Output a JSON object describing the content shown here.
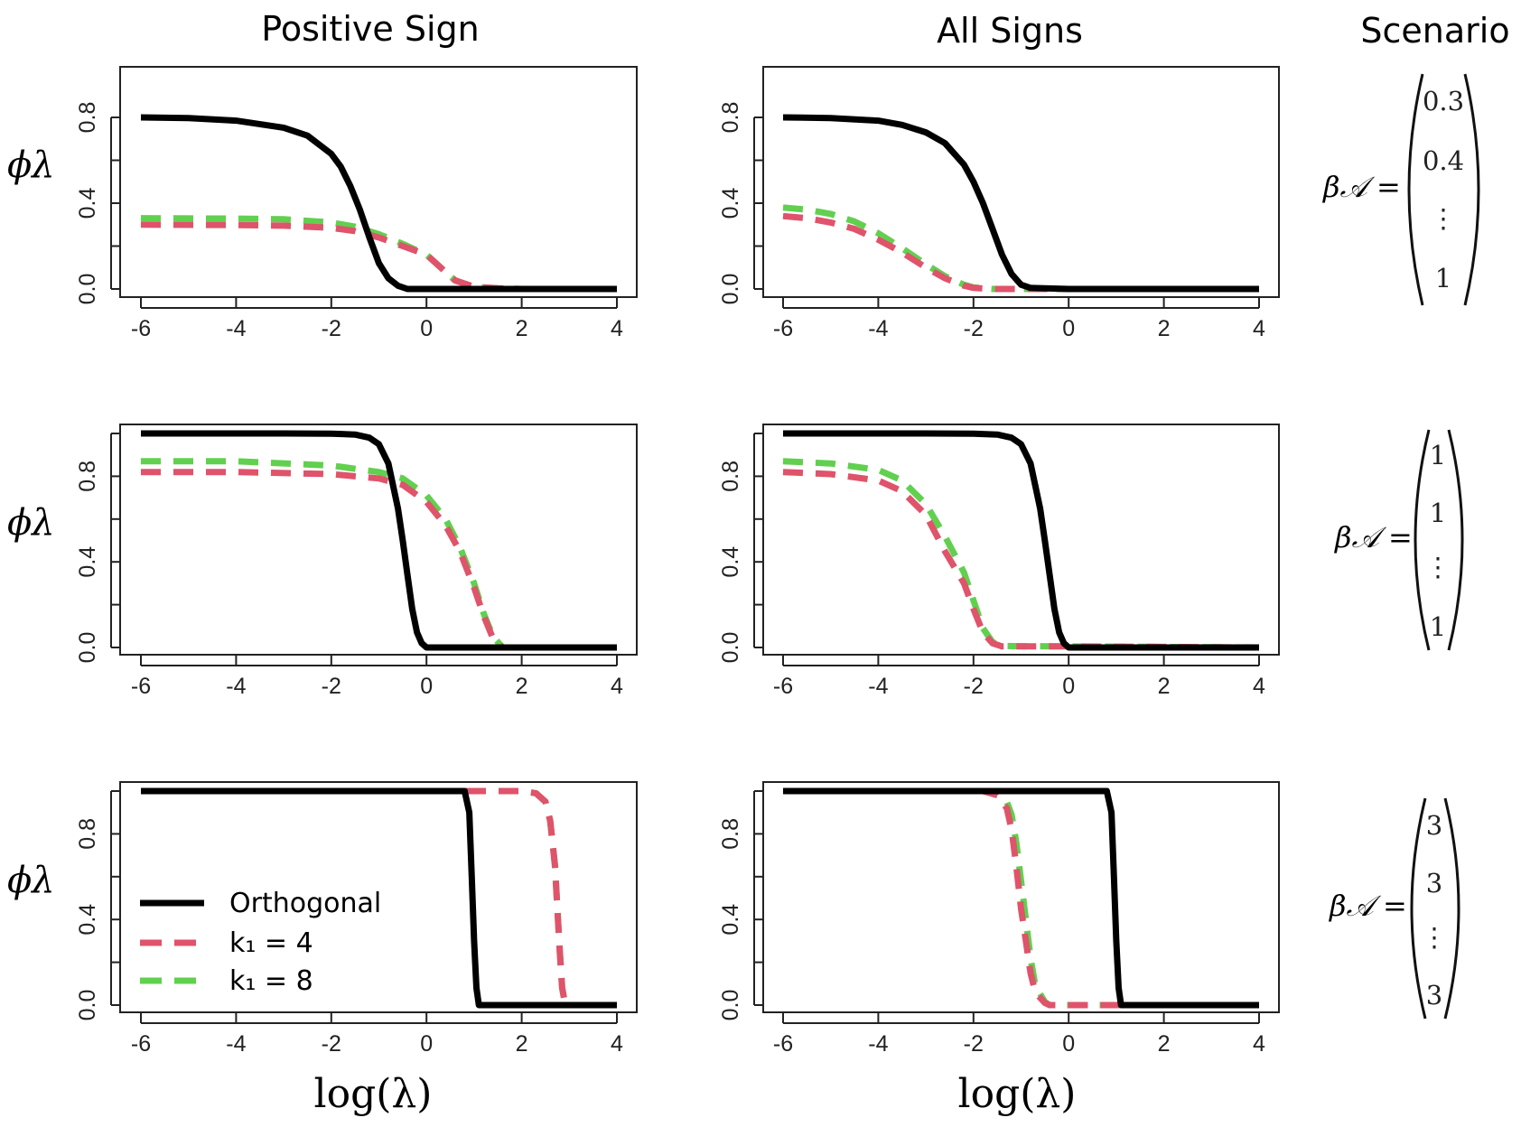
{
  "figure": {
    "column_titles": [
      "Positive Sign",
      "All Signs",
      "Scenario"
    ],
    "y_axis_label": "ϕλ",
    "x_axis_label": "log(λ)",
    "colors": {
      "orthogonal": "#000000",
      "k1_4": "#df536b",
      "k1_8": "#61d04f"
    }
  },
  "legend": {
    "items": [
      {
        "label": "Orthogonal",
        "color": "#000000",
        "style": "solid"
      },
      {
        "label": "k₁ = 4",
        "color": "#df536b",
        "style": "dashed"
      },
      {
        "label": "k₁ = 8",
        "color": "#61d04f",
        "style": "dashed"
      }
    ]
  },
  "scenarios": [
    {
      "label": "β𝒜 =",
      "entries": [
        "0.3",
        "0.4",
        "⋮",
        "1"
      ]
    },
    {
      "label": "β𝒜 =",
      "entries": [
        "1",
        "1",
        "⋮",
        "1"
      ]
    },
    {
      "label": "β𝒜 =",
      "entries": [
        "3",
        "3",
        "⋮",
        "3"
      ]
    }
  ],
  "chart_data": [
    {
      "type": "line",
      "row": 0,
      "col": 0,
      "xlim": [
        -6,
        4
      ],
      "ylim": [
        0,
        0.8
      ],
      "xticks": [
        -6,
        -4,
        -2,
        0,
        2,
        4
      ],
      "xtick_labels": [
        "-6",
        "-4",
        "-2",
        "0",
        "2",
        "4"
      ],
      "yticks": [
        0,
        0.4,
        0.8
      ],
      "ytick_labels": [
        "0.0",
        "0.4",
        "0.8"
      ],
      "series": [
        {
          "name": "Orthogonal",
          "x": [
            -6,
            -5,
            -4,
            -3,
            -2.5,
            -2,
            -1.8,
            -1.6,
            -1.4,
            -1.2,
            -1,
            -0.8,
            -0.6,
            -0.4,
            0,
            1,
            2,
            3,
            4
          ],
          "y": [
            0.8,
            0.797,
            0.785,
            0.752,
            0.715,
            0.63,
            0.57,
            0.48,
            0.37,
            0.24,
            0.12,
            0.05,
            0.015,
            0.0,
            0.0,
            0.0,
            0.0,
            0.0,
            0.0
          ]
        },
        {
          "name": "k₁ = 4",
          "x": [
            -6,
            -4,
            -3,
            -2,
            -1.5,
            -1,
            -0.5,
            0,
            0.3,
            0.6,
            1,
            1.5,
            2,
            4
          ],
          "y": [
            0.3,
            0.298,
            0.295,
            0.285,
            0.27,
            0.24,
            0.2,
            0.16,
            0.1,
            0.04,
            0.01,
            0.003,
            0.0,
            0.0
          ]
        },
        {
          "name": "k₁ = 8",
          "x": [
            -6,
            -4,
            -3,
            -2,
            -1.5,
            -1,
            -0.5,
            0,
            0.3,
            0.6,
            1,
            1.5,
            2,
            4
          ],
          "y": [
            0.33,
            0.328,
            0.325,
            0.31,
            0.29,
            0.255,
            0.21,
            0.16,
            0.1,
            0.04,
            0.01,
            0.003,
            0.0,
            0.0
          ]
        }
      ]
    },
    {
      "type": "line",
      "row": 0,
      "col": 1,
      "xlim": [
        -6,
        4
      ],
      "ylim": [
        0,
        0.8
      ],
      "xticks": [
        -6,
        -4,
        -2,
        0,
        2,
        4
      ],
      "xtick_labels": [
        "-6",
        "-4",
        "-2",
        "0",
        "2",
        "4"
      ],
      "yticks": [
        0,
        0.4,
        0.8
      ],
      "ytick_labels": [
        "0.0",
        "0.4",
        "0.8"
      ],
      "series": [
        {
          "name": "Orthogonal",
          "x": [
            -6,
            -5,
            -4,
            -3.5,
            -3,
            -2.6,
            -2.2,
            -2,
            -1.8,
            -1.6,
            -1.4,
            -1.2,
            -1,
            -0.8,
            0,
            2,
            4
          ],
          "y": [
            0.8,
            0.797,
            0.785,
            0.765,
            0.73,
            0.68,
            0.58,
            0.5,
            0.4,
            0.28,
            0.16,
            0.07,
            0.02,
            0.005,
            0.0,
            0.0,
            0.0
          ]
        },
        {
          "name": "k₁ = 4",
          "x": [
            -6,
            -5.5,
            -5,
            -4.5,
            -4,
            -3.5,
            -3,
            -2.6,
            -2.2,
            -2,
            -1.6,
            -1,
            0,
            2,
            4
          ],
          "y": [
            0.34,
            0.33,
            0.31,
            0.28,
            0.23,
            0.17,
            0.1,
            0.05,
            0.015,
            0.005,
            0.0,
            0.0,
            0.0,
            0.0,
            0.0
          ]
        },
        {
          "name": "k₁ = 8",
          "x": [
            -6,
            -5.5,
            -5,
            -4.5,
            -4,
            -3.5,
            -3,
            -2.6,
            -2.2,
            -2,
            -1.6,
            -1,
            0,
            2,
            4
          ],
          "y": [
            0.38,
            0.37,
            0.35,
            0.315,
            0.26,
            0.19,
            0.115,
            0.06,
            0.02,
            0.007,
            0.0,
            0.0,
            0.0,
            0.0,
            0.0
          ]
        }
      ]
    },
    {
      "type": "line",
      "row": 1,
      "col": 0,
      "xlim": [
        -6,
        4
      ],
      "ylim": [
        0,
        1.0
      ],
      "xticks": [
        -6,
        -4,
        -2,
        0,
        2,
        4
      ],
      "xtick_labels": [
        "-6",
        "-4",
        "-2",
        "0",
        "2",
        "4"
      ],
      "yticks": [
        0,
        0.4,
        0.8
      ],
      "ytick_labels": [
        "0.0",
        "0.4",
        "0.8"
      ],
      "series": [
        {
          "name": "Orthogonal",
          "x": [
            -6,
            -3,
            -2,
            -1.5,
            -1.2,
            -1,
            -0.8,
            -0.6,
            -0.5,
            -0.4,
            -0.3,
            -0.2,
            -0.1,
            0,
            1,
            2,
            4
          ],
          "y": [
            1.0,
            1.0,
            0.999,
            0.995,
            0.98,
            0.95,
            0.86,
            0.65,
            0.5,
            0.34,
            0.18,
            0.07,
            0.02,
            0.0,
            0.0,
            0.0,
            0.0
          ]
        },
        {
          "name": "k₁ = 4",
          "x": [
            -6,
            -4,
            -2,
            -1,
            -0.5,
            0,
            0.4,
            0.7,
            1,
            1.2,
            1.4,
            1.6,
            2,
            4
          ],
          "y": [
            0.82,
            0.82,
            0.81,
            0.79,
            0.76,
            0.68,
            0.57,
            0.45,
            0.28,
            0.15,
            0.04,
            0.0,
            0.0,
            0.0
          ]
        },
        {
          "name": "k₁ = 8",
          "x": [
            -6,
            -4,
            -2,
            -1,
            -0.5,
            0,
            0.4,
            0.7,
            1,
            1.2,
            1.4,
            1.6,
            2,
            4
          ],
          "y": [
            0.87,
            0.87,
            0.85,
            0.82,
            0.79,
            0.71,
            0.6,
            0.47,
            0.3,
            0.16,
            0.05,
            0.0,
            0.0,
            0.0
          ]
        }
      ]
    },
    {
      "type": "line",
      "row": 1,
      "col": 1,
      "xlim": [
        -6,
        4
      ],
      "ylim": [
        0,
        1.0
      ],
      "xticks": [
        -6,
        -4,
        -2,
        0,
        2,
        4
      ],
      "xtick_labels": [
        "-6",
        "-4",
        "-2",
        "0",
        "2",
        "4"
      ],
      "yticks": [
        0,
        0.4,
        0.8
      ],
      "ytick_labels": [
        "0.0",
        "0.4",
        "0.8"
      ],
      "series": [
        {
          "name": "Orthogonal",
          "x": [
            -6,
            -3,
            -2,
            -1.5,
            -1.2,
            -1,
            -0.8,
            -0.6,
            -0.5,
            -0.4,
            -0.3,
            -0.2,
            -0.1,
            0,
            1,
            2,
            4
          ],
          "y": [
            1.0,
            1.0,
            0.999,
            0.995,
            0.98,
            0.95,
            0.86,
            0.65,
            0.5,
            0.34,
            0.18,
            0.07,
            0.02,
            0.0,
            0.0,
            0.0,
            0.0
          ]
        },
        {
          "name": "k₁ = 4",
          "x": [
            -6,
            -5,
            -4,
            -3.5,
            -3,
            -2.6,
            -2.2,
            -2,
            -1.8,
            -1.6,
            -1.4,
            -1,
            0,
            4
          ],
          "y": [
            0.82,
            0.81,
            0.78,
            0.73,
            0.62,
            0.45,
            0.3,
            0.18,
            0.07,
            0.02,
            0.005,
            0.005,
            0.005,
            0.0
          ]
        },
        {
          "name": "k₁ = 8",
          "x": [
            -6,
            -5,
            -4,
            -3.5,
            -3,
            -2.6,
            -2.2,
            -2,
            -1.8,
            -1.6,
            -1.4,
            -1,
            0,
            4
          ],
          "y": [
            0.87,
            0.86,
            0.83,
            0.78,
            0.67,
            0.52,
            0.35,
            0.22,
            0.09,
            0.025,
            0.007,
            0.006,
            0.005,
            0.0
          ]
        }
      ]
    },
    {
      "type": "line",
      "row": 2,
      "col": 0,
      "xlim": [
        -6,
        4
      ],
      "ylim": [
        0,
        1.0
      ],
      "xticks": [
        -6,
        -4,
        -2,
        0,
        2,
        4
      ],
      "xtick_labels": [
        "-6",
        "-4",
        "-2",
        "0",
        "2",
        "4"
      ],
      "yticks": [
        0,
        0.4,
        0.8
      ],
      "ytick_labels": [
        "0.0",
        "0.4",
        "0.8"
      ],
      "series": [
        {
          "name": "Orthogonal",
          "x": [
            -6,
            0.8,
            0.9,
            0.95,
            1.0,
            1.05,
            1.1,
            1.2,
            4
          ],
          "y": [
            1.0,
            1.0,
            0.9,
            0.6,
            0.3,
            0.08,
            0.0,
            0.0,
            0.0
          ]
        },
        {
          "name": "k₁ = 4",
          "x": [
            -6,
            2.0,
            2.3,
            2.5,
            2.6,
            2.7,
            2.75,
            2.8,
            2.85,
            2.9,
            3.0,
            4
          ],
          "y": [
            1.0,
            1.0,
            0.99,
            0.95,
            0.86,
            0.65,
            0.45,
            0.25,
            0.08,
            0.02,
            0.0,
            0.0
          ]
        },
        {
          "name": "k₁ = 8",
          "x": [
            -6,
            2.0,
            2.3,
            2.5,
            2.6,
            2.7,
            2.75,
            2.8,
            2.85,
            2.9,
            3.0,
            4
          ],
          "y": [
            1.0,
            1.0,
            0.99,
            0.95,
            0.86,
            0.65,
            0.45,
            0.25,
            0.08,
            0.02,
            0.0,
            0.0
          ]
        }
      ]
    },
    {
      "type": "line",
      "row": 2,
      "col": 1,
      "xlim": [
        -6,
        4
      ],
      "ylim": [
        0,
        1.0
      ],
      "xticks": [
        -6,
        -4,
        -2,
        0,
        2,
        4
      ],
      "xtick_labels": [
        "-6",
        "-4",
        "-2",
        "0",
        "2",
        "4"
      ],
      "yticks": [
        0,
        0.4,
        0.8
      ],
      "ytick_labels": [
        "0.0",
        "0.4",
        "0.8"
      ],
      "series": [
        {
          "name": "Orthogonal",
          "x": [
            -6,
            0.8,
            0.9,
            0.95,
            1.0,
            1.05,
            1.1,
            1.2,
            4
          ],
          "y": [
            1.0,
            1.0,
            0.9,
            0.6,
            0.3,
            0.08,
            0.0,
            0.0,
            0.0
          ]
        },
        {
          "name": "k₁ = 4",
          "x": [
            -6,
            -1.8,
            -1.5,
            -1.3,
            -1.2,
            -1.1,
            -1.0,
            -0.9,
            -0.8,
            -0.7,
            -0.5,
            -0.4,
            0,
            4
          ],
          "y": [
            1.0,
            1.0,
            0.98,
            0.92,
            0.82,
            0.65,
            0.45,
            0.3,
            0.15,
            0.06,
            0.01,
            0.0,
            0.0,
            0.0
          ]
        },
        {
          "name": "k₁ = 8",
          "x": [
            -6,
            -1.8,
            -1.5,
            -1.3,
            -1.2,
            -1.1,
            -1.0,
            -0.9,
            -0.8,
            -0.7,
            -0.5,
            -0.4,
            0,
            4
          ],
          "y": [
            1.0,
            1.0,
            0.985,
            0.95,
            0.89,
            0.76,
            0.58,
            0.4,
            0.22,
            0.09,
            0.015,
            0.0,
            0.0,
            0.0
          ]
        }
      ]
    }
  ]
}
